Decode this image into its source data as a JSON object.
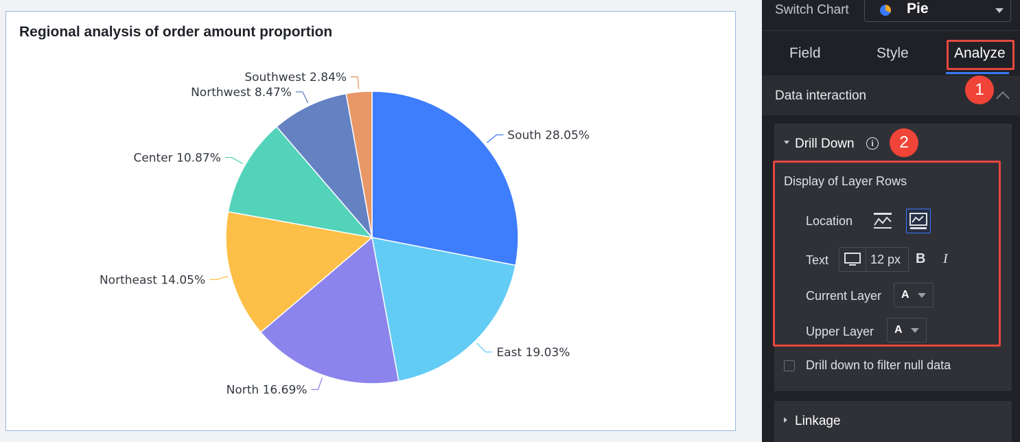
{
  "chart": {
    "title": "Regional analysis of order amount proportion"
  },
  "chart_data": {
    "type": "pie",
    "title": "Regional analysis of order amount proportion",
    "slices": [
      {
        "label": "South",
        "value": 28.05,
        "display": "South 28.05%",
        "color": "#3e7dfc"
      },
      {
        "label": "East",
        "value": 19.03,
        "display": "East 19.03%",
        "color": "#63ccf4"
      },
      {
        "label": "North",
        "value": 16.69,
        "display": "North 16.69%",
        "color": "#8b84ec"
      },
      {
        "label": "Northeast",
        "value": 14.05,
        "display": "Northeast 14.05%",
        "color": "#fdbf47"
      },
      {
        "label": "Center",
        "value": 10.87,
        "display": "Center 10.87%",
        "color": "#53d3ba"
      },
      {
        "label": "Northwest",
        "value": 8.47,
        "display": "Northwest 8.47%",
        "color": "#6481c2"
      },
      {
        "label": "Southwest",
        "value": 2.84,
        "display": "Southwest 2.84%",
        "color": "#e89767"
      }
    ],
    "unit": "%",
    "legend": "none"
  },
  "panel": {
    "switch_label": "Switch Chart",
    "chart_type": "Pie",
    "tabs": {
      "field": "Field",
      "style": "Style",
      "analyze": "Analyze"
    },
    "section_title": "Data interaction",
    "drill": {
      "title": "Drill Down",
      "info_glyph": "i",
      "layer_rows_title": "Display of Layer Rows",
      "location_label": "Location",
      "text_label": "Text",
      "text_size": "12 px",
      "bold": "B",
      "italic": "I",
      "current_layer_label": "Current Layer",
      "current_layer_value": "A",
      "upper_layer_label": "Upper Layer",
      "upper_layer_value": "A",
      "null_filter_label": "Drill down to filter null data"
    },
    "linkage_title": "Linkage"
  },
  "annotations": {
    "step1": "1",
    "step2": "2"
  },
  "colors": {
    "accent": "#3a7afe",
    "highlight": "#e6473e"
  }
}
